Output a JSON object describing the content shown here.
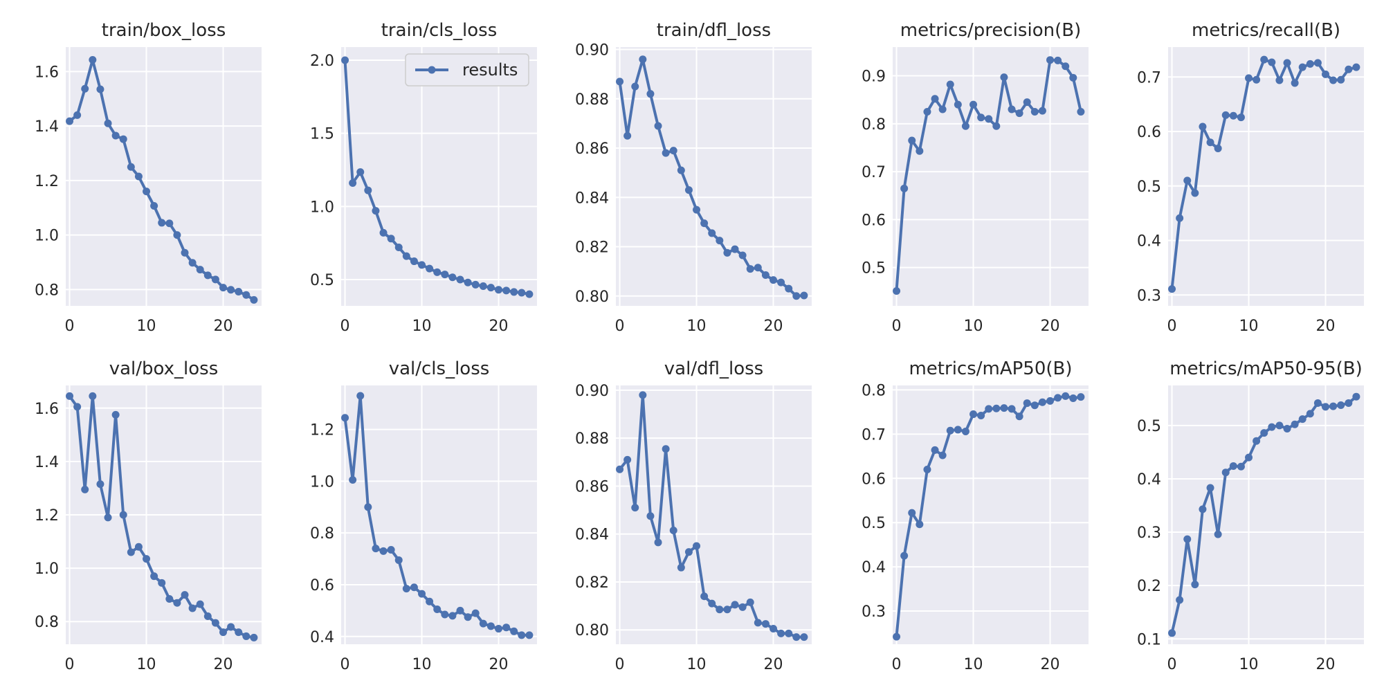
{
  "figure": {
    "background": "#ffffff",
    "panel_background": "#eaeaf2",
    "grid_color": "#ffffff",
    "series_color": "#4c72b0",
    "legend": {
      "label": "results",
      "panel": "train/cls_loss",
      "placement": "top-right"
    }
  },
  "chart_data": [
    {
      "type": "line",
      "title": "train/box_loss",
      "xlim": [
        -0.5,
        25
      ],
      "ylim": [
        0.74,
        1.69
      ],
      "x_ticks": [
        0,
        10,
        20
      ],
      "y_ticks": [
        0.8,
        1.0,
        1.2,
        1.4,
        1.6
      ],
      "y_tick_labels": [
        "0.8",
        "1.0",
        "1.2",
        "1.4",
        "1.6"
      ],
      "grid": true,
      "series": [
        {
          "x": [
            0,
            1,
            2,
            3,
            4,
            5,
            6,
            7,
            8,
            9,
            10,
            11,
            12,
            13,
            14,
            15,
            16,
            17,
            18,
            19,
            20,
            21,
            22,
            23,
            24
          ],
          "values": [
            1.418,
            1.44,
            1.537,
            1.643,
            1.535,
            1.41,
            1.365,
            1.352,
            1.25,
            1.215,
            1.16,
            1.107,
            1.045,
            1.043,
            1.0,
            0.935,
            0.898,
            0.873,
            0.852,
            0.837,
            0.807,
            0.799,
            0.792,
            0.78,
            0.762
          ]
        }
      ]
    },
    {
      "type": "line",
      "title": "train/cls_loss",
      "xlim": [
        -0.5,
        25
      ],
      "ylim": [
        0.32,
        2.09
      ],
      "x_ticks": [
        0,
        10,
        20
      ],
      "y_ticks": [
        0.5,
        1.0,
        1.5,
        2.0
      ],
      "y_tick_labels": [
        "0.5",
        "1.0",
        "1.5",
        "2.0"
      ],
      "grid": true,
      "series": [
        {
          "name": "results",
          "x": [
            0,
            1,
            2,
            3,
            4,
            5,
            6,
            7,
            8,
            9,
            10,
            11,
            12,
            13,
            14,
            15,
            16,
            17,
            18,
            19,
            20,
            21,
            22,
            23,
            24
          ],
          "values": [
            2.0,
            1.16,
            1.235,
            1.11,
            0.97,
            0.82,
            0.78,
            0.72,
            0.66,
            0.625,
            0.6,
            0.575,
            0.55,
            0.535,
            0.515,
            0.5,
            0.48,
            0.465,
            0.455,
            0.445,
            0.43,
            0.425,
            0.415,
            0.41,
            0.4
          ]
        }
      ]
    },
    {
      "type": "line",
      "title": "train/dfl_loss",
      "xlim": [
        -0.5,
        25
      ],
      "ylim": [
        0.796,
        0.901
      ],
      "x_ticks": [
        0,
        10,
        20
      ],
      "y_ticks": [
        0.8,
        0.82,
        0.84,
        0.86,
        0.88,
        0.9
      ],
      "y_tick_labels": [
        "0.80",
        "0.82",
        "0.84",
        "0.86",
        "0.88",
        "0.90"
      ],
      "grid": true,
      "series": [
        {
          "x": [
            0,
            1,
            2,
            3,
            4,
            5,
            6,
            7,
            8,
            9,
            10,
            11,
            12,
            13,
            14,
            15,
            16,
            17,
            18,
            19,
            20,
            21,
            22,
            23,
            24
          ],
          "values": [
            0.887,
            0.865,
            0.885,
            0.896,
            0.882,
            0.869,
            0.858,
            0.859,
            0.851,
            0.843,
            0.835,
            0.8295,
            0.8255,
            0.8225,
            0.8175,
            0.819,
            0.8165,
            0.811,
            0.8115,
            0.8085,
            0.8065,
            0.8055,
            0.803,
            0.8,
            0.8002
          ]
        }
      ]
    },
    {
      "type": "line",
      "title": "metrics/precision(B)",
      "xlim": [
        -0.5,
        25
      ],
      "ylim": [
        0.42,
        0.96
      ],
      "x_ticks": [
        0,
        10,
        20
      ],
      "y_ticks": [
        0.5,
        0.6,
        0.7,
        0.8,
        0.9
      ],
      "y_tick_labels": [
        "0.5",
        "0.6",
        "0.7",
        "0.8",
        "0.9"
      ],
      "grid": true,
      "series": [
        {
          "x": [
            0,
            1,
            2,
            3,
            4,
            5,
            6,
            7,
            8,
            9,
            10,
            11,
            12,
            13,
            14,
            15,
            16,
            17,
            18,
            19,
            20,
            21,
            22,
            23,
            24
          ],
          "values": [
            0.451,
            0.665,
            0.765,
            0.743,
            0.825,
            0.852,
            0.83,
            0.882,
            0.84,
            0.795,
            0.84,
            0.813,
            0.81,
            0.795,
            0.897,
            0.83,
            0.822,
            0.845,
            0.825,
            0.827,
            0.933,
            0.932,
            0.92,
            0.896,
            0.825
          ]
        }
      ]
    },
    {
      "type": "line",
      "title": "metrics/recall(B)",
      "xlim": [
        -0.5,
        25
      ],
      "ylim": [
        0.28,
        0.755
      ],
      "x_ticks": [
        0,
        10,
        20
      ],
      "y_ticks": [
        0.3,
        0.4,
        0.5,
        0.6,
        0.7
      ],
      "y_tick_labels": [
        "0.3",
        "0.4",
        "0.5",
        "0.6",
        "0.7"
      ],
      "grid": true,
      "series": [
        {
          "x": [
            0,
            1,
            2,
            3,
            4,
            5,
            6,
            7,
            8,
            9,
            10,
            11,
            12,
            13,
            14,
            15,
            16,
            17,
            18,
            19,
            20,
            21,
            22,
            23,
            24
          ],
          "values": [
            0.311,
            0.441,
            0.51,
            0.487,
            0.609,
            0.58,
            0.569,
            0.63,
            0.629,
            0.626,
            0.698,
            0.695,
            0.732,
            0.727,
            0.694,
            0.726,
            0.689,
            0.718,
            0.724,
            0.726,
            0.705,
            0.694,
            0.695,
            0.714,
            0.718
          ]
        }
      ]
    },
    {
      "type": "line",
      "title": "val/box_loss",
      "xlim": [
        -0.5,
        25
      ],
      "ylim": [
        0.715,
        1.685
      ],
      "x_ticks": [
        0,
        10,
        20
      ],
      "y_ticks": [
        0.8,
        1.0,
        1.2,
        1.4,
        1.6
      ],
      "y_tick_labels": [
        "0.8",
        "1.0",
        "1.2",
        "1.4",
        "1.6"
      ],
      "grid": true,
      "series": [
        {
          "x": [
            0,
            1,
            2,
            3,
            4,
            5,
            6,
            7,
            8,
            9,
            10,
            11,
            12,
            13,
            14,
            15,
            16,
            17,
            18,
            19,
            20,
            21,
            22,
            23,
            24
          ],
          "values": [
            1.645,
            1.605,
            1.295,
            1.645,
            1.315,
            1.19,
            1.575,
            1.2,
            1.06,
            1.08,
            1.035,
            0.97,
            0.945,
            0.885,
            0.87,
            0.9,
            0.85,
            0.865,
            0.82,
            0.795,
            0.76,
            0.78,
            0.76,
            0.745,
            0.74
          ]
        }
      ]
    },
    {
      "type": "line",
      "title": "val/cls_loss",
      "xlim": [
        -0.5,
        25
      ],
      "ylim": [
        0.37,
        1.37
      ],
      "x_ticks": [
        0,
        10,
        20
      ],
      "y_ticks": [
        0.4,
        0.6,
        0.8,
        1.0,
        1.2
      ],
      "y_tick_labels": [
        "0.4",
        "0.6",
        "0.8",
        "1.0",
        "1.2"
      ],
      "grid": true,
      "series": [
        {
          "x": [
            0,
            1,
            2,
            3,
            4,
            5,
            6,
            7,
            8,
            9,
            10,
            11,
            12,
            13,
            14,
            15,
            16,
            17,
            18,
            19,
            20,
            21,
            22,
            23,
            24
          ],
          "values": [
            1.245,
            1.005,
            1.33,
            0.9,
            0.74,
            0.73,
            0.735,
            0.695,
            0.585,
            0.59,
            0.565,
            0.535,
            0.505,
            0.485,
            0.48,
            0.5,
            0.475,
            0.49,
            0.45,
            0.44,
            0.43,
            0.435,
            0.42,
            0.405,
            0.405
          ]
        }
      ]
    },
    {
      "type": "line",
      "title": "val/dfl_loss",
      "xlim": [
        -0.5,
        25
      ],
      "ylim": [
        0.794,
        0.902
      ],
      "x_ticks": [
        0,
        10,
        20
      ],
      "y_ticks": [
        0.8,
        0.82,
        0.84,
        0.86,
        0.88,
        0.9
      ],
      "y_tick_labels": [
        "0.80",
        "0.82",
        "0.84",
        "0.86",
        "0.88",
        "0.90"
      ],
      "grid": true,
      "series": [
        {
          "x": [
            0,
            1,
            2,
            3,
            4,
            5,
            6,
            7,
            8,
            9,
            10,
            11,
            12,
            13,
            14,
            15,
            16,
            17,
            18,
            19,
            20,
            21,
            22,
            23,
            24
          ],
          "values": [
            0.867,
            0.871,
            0.851,
            0.898,
            0.8475,
            0.8365,
            0.8755,
            0.8415,
            0.826,
            0.8325,
            0.835,
            0.814,
            0.811,
            0.8085,
            0.8085,
            0.8105,
            0.8095,
            0.8115,
            0.803,
            0.8025,
            0.8005,
            0.7985,
            0.7985,
            0.797,
            0.797
          ]
        }
      ]
    },
    {
      "type": "line",
      "title": "metrics/mAP50(B)",
      "xlim": [
        -0.5,
        25
      ],
      "ylim": [
        0.225,
        0.81
      ],
      "x_ticks": [
        0,
        10,
        20
      ],
      "y_ticks": [
        0.3,
        0.4,
        0.5,
        0.6,
        0.7,
        0.8
      ],
      "y_tick_labels": [
        "0.3",
        "0.4",
        "0.5",
        "0.6",
        "0.7",
        "0.8"
      ],
      "grid": true,
      "series": [
        {
          "x": [
            0,
            1,
            2,
            3,
            4,
            5,
            6,
            7,
            8,
            9,
            10,
            11,
            12,
            13,
            14,
            15,
            16,
            17,
            18,
            19,
            20,
            21,
            22,
            23,
            24
          ],
          "values": [
            0.242,
            0.425,
            0.522,
            0.496,
            0.62,
            0.664,
            0.652,
            0.708,
            0.71,
            0.706,
            0.745,
            0.742,
            0.757,
            0.758,
            0.759,
            0.757,
            0.74,
            0.77,
            0.765,
            0.772,
            0.775,
            0.782,
            0.786,
            0.781,
            0.784
          ]
        }
      ]
    },
    {
      "type": "line",
      "title": "metrics/mAP50-95(B)",
      "xlim": [
        -0.5,
        25
      ],
      "ylim": [
        0.09,
        0.575
      ],
      "x_ticks": [
        0,
        10,
        20
      ],
      "y_ticks": [
        0.1,
        0.2,
        0.3,
        0.4,
        0.5
      ],
      "y_tick_labels": [
        "0.1",
        "0.2",
        "0.3",
        "0.4",
        "0.5"
      ],
      "grid": true,
      "series": [
        {
          "x": [
            0,
            1,
            2,
            3,
            4,
            5,
            6,
            7,
            8,
            9,
            10,
            11,
            12,
            13,
            14,
            15,
            16,
            17,
            18,
            19,
            20,
            21,
            22,
            23,
            24
          ],
          "values": [
            0.111,
            0.173,
            0.287,
            0.202,
            0.343,
            0.383,
            0.296,
            0.412,
            0.424,
            0.423,
            0.44,
            0.471,
            0.486,
            0.497,
            0.5,
            0.494,
            0.502,
            0.512,
            0.522,
            0.542,
            0.535,
            0.536,
            0.538,
            0.542,
            0.554
          ]
        }
      ]
    }
  ]
}
